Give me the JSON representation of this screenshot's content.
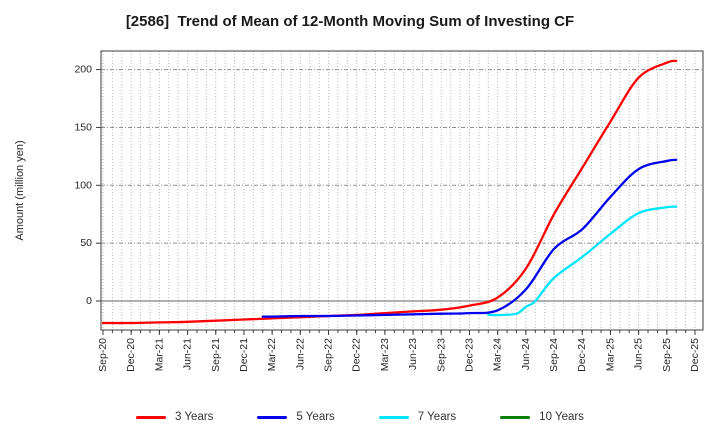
{
  "title": "[2586]  Trend of Mean of 12-Month Moving Sum of Investing CF",
  "colors": {
    "series_3y": "#ff0000",
    "series_5y": "#0000ee",
    "series_7y": "#00e5ff",
    "series_10y": "#007f00",
    "grid_minor": "#b9b9b9",
    "grid_major": "#909090",
    "zero_line": "#808080",
    "plot_border": "#3c3c3c",
    "text": "#262626"
  },
  "chart_data": {
    "type": "line",
    "title": "[2586]  Trend of Mean of 12-Month Moving Sum of Investing CF",
    "xlabel": "",
    "ylabel": "Amount (million yen)",
    "x_unit": "months since Sep-20 (minor grid = monthly)",
    "x_tick_labels": [
      "Sep-20",
      "Dec-20",
      "Mar-21",
      "Jun-21",
      "Sep-21",
      "Dec-21",
      "Mar-22",
      "Jun-22",
      "Sep-22",
      "Dec-22",
      "Mar-23",
      "Jun-23",
      "Sep-23",
      "Dec-23",
      "Mar-24",
      "Jun-24",
      "Sep-24",
      "Dec-24",
      "Mar-25",
      "Jun-25",
      "Sep-25",
      "Dec-25"
    ],
    "x_tick_months": [
      0,
      3,
      6,
      9,
      12,
      15,
      18,
      21,
      24,
      27,
      30,
      33,
      36,
      39,
      42,
      45,
      48,
      51,
      54,
      57,
      60,
      63
    ],
    "x_minor_months_max": 63,
    "ylim": [
      -25,
      216
    ],
    "yticks": [
      0,
      50,
      100,
      150,
      200
    ],
    "grid": "on",
    "legend_position": "bottom",
    "series": [
      {
        "name": "3 Years",
        "color": "#ff0000",
        "x": [
          0,
          3,
          6,
          9,
          12,
          15,
          18,
          21,
          24,
          27,
          30,
          33,
          36,
          39,
          42,
          45,
          48,
          51,
          54,
          57,
          60,
          61
        ],
        "y": [
          -19,
          -19,
          -18.5,
          -18,
          -17,
          -16,
          -15,
          -14,
          -13,
          -12,
          -10.5,
          -9,
          -7.5,
          -4,
          3,
          28,
          75,
          115,
          155,
          193,
          206,
          207.5
        ]
      },
      {
        "name": "5 Years",
        "color": "#0000ee",
        "x": [
          17,
          18,
          21,
          24,
          27,
          30,
          33,
          36,
          39,
          42,
          45,
          48,
          51,
          54,
          57,
          60,
          61
        ],
        "y": [
          -13.5,
          -13.5,
          -13,
          -13,
          -12.5,
          -12,
          -11.5,
          -11,
          -10.5,
          -8,
          10,
          45,
          62,
          90,
          114,
          121,
          122
        ]
      },
      {
        "name": "7 Years",
        "color": "#00e5ff",
        "x": [
          41,
          42,
          44,
          45,
          46,
          48,
          51,
          54,
          57,
          60,
          61
        ],
        "y": [
          -12,
          -12.2,
          -11,
          -5,
          0,
          20,
          38,
          58,
          76,
          81,
          81.5
        ]
      },
      {
        "name": "10 Years",
        "color": "#007f00",
        "x": [],
        "y": []
      }
    ]
  },
  "legend": {
    "items": [
      {
        "label": "3 Years",
        "color": "#ff0000"
      },
      {
        "label": "5 Years",
        "color": "#0000ee"
      },
      {
        "label": "7 Years",
        "color": "#00e5ff"
      },
      {
        "label": "10 Years",
        "color": "#007f00"
      }
    ]
  }
}
